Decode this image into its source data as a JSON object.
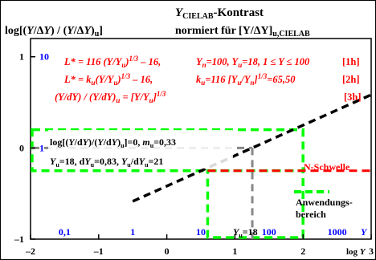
{
  "colors": {
    "background": "#ffffff",
    "border": "#000000",
    "red": "#ff0000",
    "blue": "#0000ff",
    "green": "#00ff00",
    "gray": "#888888",
    "black": "#000000"
  },
  "chart_data": {
    "type": "line",
    "title_main": "Y",
    "title_sub": "CIELAB",
    "title_suffix": "-Kontrast",
    "title_line2": "normiert für [Y/ΔY]",
    "title_line2_sub": "u,CIELAB",
    "ylabel": "log[(Y/ΔY) / (Y/ΔY)u]",
    "xlabel": "log Y",
    "xlim": [
      -2,
      3
    ],
    "ylim": [
      -1,
      1.2
    ],
    "x_ticks": [
      "–2",
      "–1",
      "0",
      "1",
      "2",
      "3"
    ],
    "y_ticks": [
      {
        "value": 1,
        "label": "1"
      },
      {
        "value": 0,
        "label": "0"
      },
      {
        "value": -1,
        "label": "–1"
      }
    ],
    "blue_y_labels": [
      {
        "value": 1,
        "label": "10"
      },
      {
        "value": 0,
        "label": "1"
      }
    ],
    "blue_x_labels": [
      {
        "value": -1.5,
        "label": "0,1"
      },
      {
        "value": -0.5,
        "label": "1"
      },
      {
        "value": 0.5,
        "label": "10"
      },
      {
        "value": 1.5,
        "label": "100"
      },
      {
        "value": 2.5,
        "label": "1000"
      }
    ],
    "blue_x_suffix": "Y",
    "yu_label": "Yu=18",
    "formulas": [
      {
        "left": "L* = 116 (Y/Yu)^1/3 – 16,",
        "mid": "Yn=100, Yu=18, 1 ≤ Y ≤ 100",
        "tag": "[1h]"
      },
      {
        "left": "L* = ku(Y/Yu)^1/3 – 16,",
        "mid": "ku=116 [Yu/Yn]^1/3 = 65,50",
        "tag": "[2h]"
      },
      {
        "left": "(Y/dY) / (Y/dY)u = [Y/Yu]^1/3",
        "mid": "",
        "tag": "[3h]"
      }
    ],
    "annotation_box": {
      "line1": "log[(Y/dY)/(Y/dY)u]=0, mu=0,33",
      "line2": "Yu=18, dYu=0,83, Yu/dYu=21"
    },
    "n_schwelle_label": "N-Schwelle",
    "n_schwelle_y": -0.25,
    "anwendungs_label": [
      "Anwendungs-",
      "bereich"
    ],
    "series": [
      {
        "style": "dashed-black",
        "slope": 0.3333,
        "x0": 1.2553,
        "points": [
          [
            -0.5,
            -0.585
          ],
          [
            3,
            0.583
          ]
        ]
      }
    ],
    "gray_reference": {
      "x": 1.2553,
      "y": 0
    },
    "green_region_outer": {
      "x": [
        -2,
        2
      ],
      "y": [
        -0.25,
        0.2
      ]
    },
    "green_region_inner": {
      "x": [
        0.6,
        2
      ],
      "y": [
        -1,
        -0.25
      ]
    },
    "legend_position": "bottom-right"
  }
}
